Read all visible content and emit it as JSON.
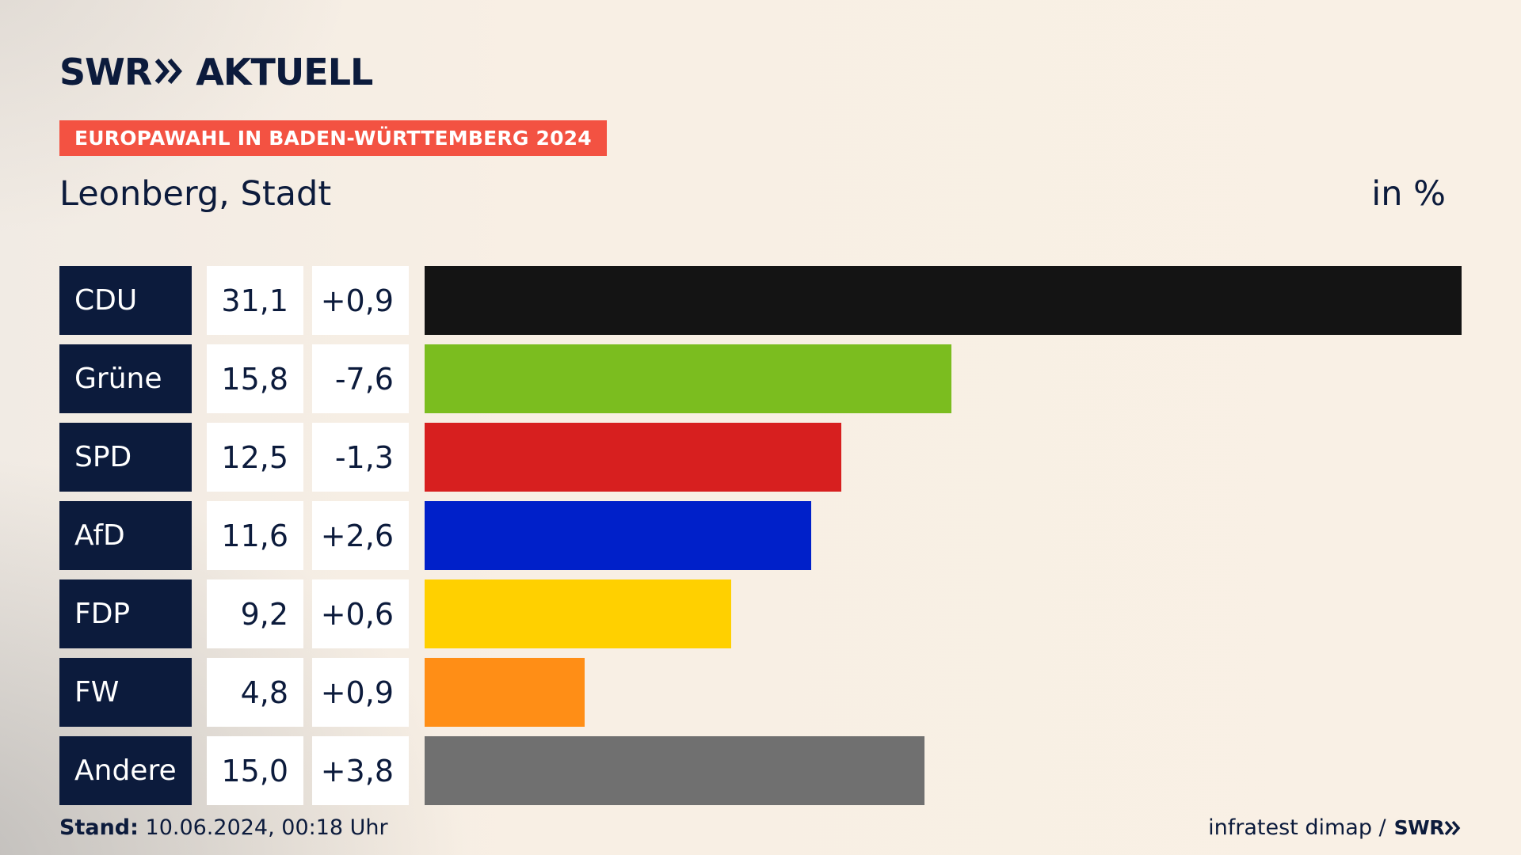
{
  "brand": {
    "swr": "SWR",
    "aktuell": "AKTUELL"
  },
  "badge": "EUROPAWAHL IN BADEN-WÜRTTEMBERG 2024",
  "subtitle": "Leonberg, Stadt",
  "unit": "in %",
  "footer": {
    "stand_label": "Stand:",
    "stand_value": "10.06.2024, 00:18 Uhr",
    "source": "infratest dimap /",
    "source_brand": "SWR"
  },
  "colors": {
    "navy": "#0c1b3c",
    "badge": "#f35242"
  },
  "chart_data": {
    "type": "bar",
    "orientation": "horizontal",
    "categories": [
      "CDU",
      "Grüne",
      "SPD",
      "AfD",
      "FDP",
      "FW",
      "Andere"
    ],
    "values": [
      31.1,
      15.8,
      12.5,
      11.6,
      9.2,
      4.8,
      15.0
    ],
    "labels": [
      "31,1",
      "15,8",
      "12,5",
      "11,6",
      "9,2",
      "4,8",
      "15,0"
    ],
    "diff_labels": [
      "+0,9",
      "-7,6",
      "-1,3",
      "+2,6",
      "+0,6",
      "+0,9",
      "+3,8"
    ],
    "colors": [
      "#141414",
      "#7bbd1f",
      "#d71f1f",
      "#0020c9",
      "#ffd000",
      "#ff8e16",
      "#707070"
    ],
    "xlim": [
      0,
      31.1
    ]
  }
}
